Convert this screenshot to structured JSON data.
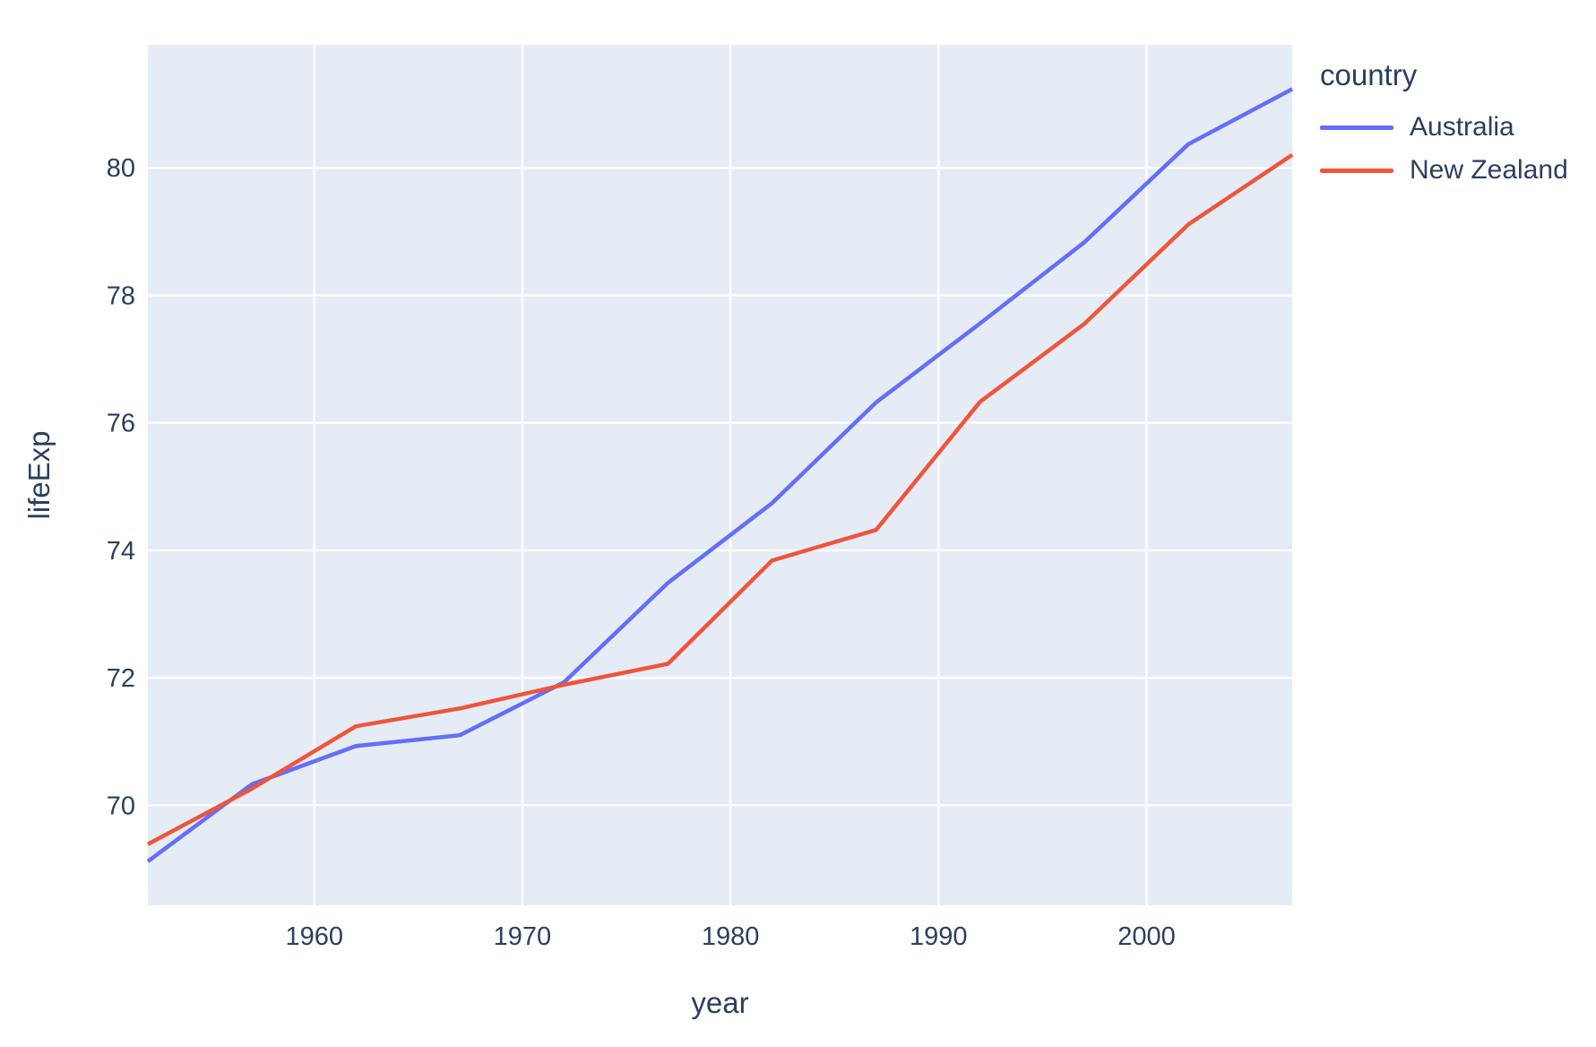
{
  "chart_data": {
    "type": "line",
    "title": "",
    "xlabel": "year",
    "ylabel": "lifeExp",
    "legend_title": "country",
    "legend_position": "right-top",
    "grid": true,
    "x": [
      1952,
      1957,
      1962,
      1967,
      1972,
      1977,
      1982,
      1987,
      1992,
      1997,
      2002,
      2007
    ],
    "series": [
      {
        "name": "Australia",
        "color": "#636EFA",
        "values": [
          69.12,
          70.33,
          70.93,
          71.1,
          71.93,
          73.49,
          74.74,
          76.32,
          77.56,
          78.83,
          80.37,
          81.235
        ]
      },
      {
        "name": "New Zealand",
        "color": "#EF553B",
        "values": [
          69.39,
          70.26,
          71.24,
          71.52,
          71.89,
          72.22,
          73.84,
          74.32,
          76.33,
          77.55,
          79.11,
          80.204
        ]
      }
    ],
    "xticks": [
      1960,
      1970,
      1980,
      1990,
      2000
    ],
    "yticks": [
      70,
      72,
      74,
      76,
      78,
      80
    ],
    "xlim": [
      1952,
      2007
    ],
    "ylim": [
      68.43,
      81.93
    ],
    "plot_bg": "#E5ECF6",
    "paper_bg": "#FFFFFF",
    "grid_color": "#FFFFFF",
    "text_color": "#2a3f5f"
  }
}
